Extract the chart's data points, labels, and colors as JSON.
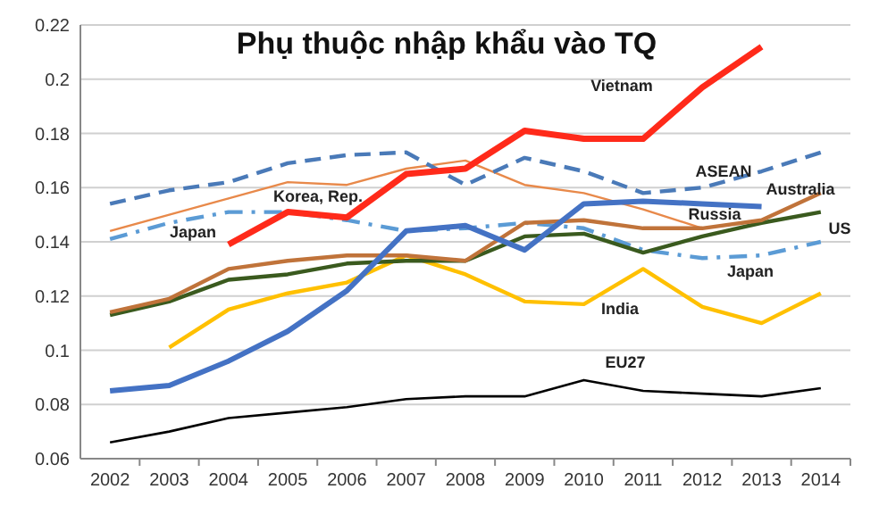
{
  "chart_data": {
    "type": "line",
    "title": "Phụ thuộc nhập khẩu vào TQ",
    "categories": [
      "2002",
      "2003",
      "2004",
      "2005",
      "2006",
      "2007",
      "2008",
      "2009",
      "2010",
      "2011",
      "2012",
      "2013",
      "2014"
    ],
    "ylim": [
      0.06,
      0.22
    ],
    "yticks": [
      0.06,
      0.08,
      0.1,
      0.12,
      0.14,
      0.16,
      0.18,
      0.2,
      0.22
    ],
    "grid": "y",
    "series": [
      {
        "name": "Korea, Rep.",
        "color": "#e8894a",
        "values": [
          0.144,
          0.15,
          0.156,
          0.162,
          0.161,
          0.167,
          0.17,
          0.161,
          0.158,
          0.152,
          0.145,
          0.148,
          null
        ]
      },
      {
        "name": "ASEAN",
        "color": "#4a7ab8",
        "line_style": "dashed",
        "values": [
          0.154,
          0.159,
          0.162,
          0.169,
          0.172,
          0.173,
          0.161,
          0.171,
          0.166,
          0.158,
          0.16,
          0.166,
          0.173
        ]
      },
      {
        "name": "Japan",
        "color": "#5b9bd5",
        "line_style": "dashdot",
        "values": [
          0.141,
          0.147,
          0.151,
          0.151,
          0.148,
          0.144,
          0.145,
          0.147,
          0.145,
          0.137,
          0.134,
          0.135,
          0.14
        ]
      },
      {
        "name": "EU27",
        "color": "#000000",
        "values": [
          0.066,
          0.07,
          0.075,
          0.077,
          0.079,
          0.082,
          0.083,
          0.083,
          0.089,
          0.085,
          0.084,
          0.083,
          0.086
        ]
      },
      {
        "name": "India",
        "color": "#ffc000",
        "values": [
          null,
          0.101,
          0.115,
          0.121,
          0.125,
          0.135,
          0.128,
          0.118,
          0.117,
          0.13,
          0.116,
          0.11,
          0.121
        ]
      },
      {
        "name": "US",
        "color": "#3a5a1e",
        "values": [
          0.113,
          0.118,
          0.126,
          0.128,
          0.132,
          0.133,
          0.133,
          0.142,
          0.143,
          0.136,
          0.142,
          0.147,
          0.151
        ]
      },
      {
        "name": "Australia",
        "color": "#c0733a",
        "values": [
          0.114,
          0.119,
          0.13,
          0.133,
          0.135,
          0.135,
          0.133,
          0.147,
          0.148,
          0.145,
          0.145,
          0.148,
          0.158
        ]
      },
      {
        "name": "Russia",
        "color": "#4472c4",
        "values": [
          0.085,
          0.087,
          0.096,
          0.107,
          0.122,
          0.144,
          0.146,
          0.137,
          0.154,
          0.155,
          0.154,
          0.153,
          null
        ]
      },
      {
        "name": "Vietnam",
        "color": "#ff2a1a",
        "values": [
          null,
          null,
          0.139,
          0.151,
          0.149,
          0.165,
          0.167,
          0.181,
          0.178,
          0.178,
          0.197,
          0.212,
          null
        ]
      }
    ]
  }
}
